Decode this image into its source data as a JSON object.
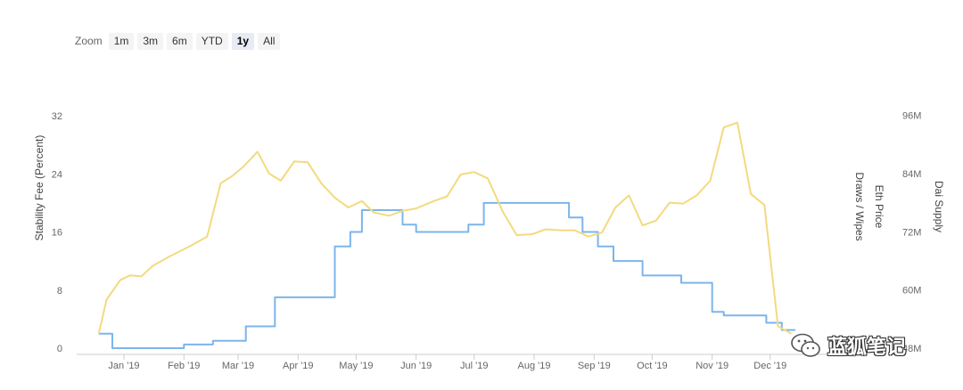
{
  "zoom": {
    "label": "Zoom",
    "buttons": [
      "1m",
      "3m",
      "6m",
      "YTD",
      "1y",
      "All"
    ],
    "active": "1y"
  },
  "watermark": {
    "text": "蓝狐笔记"
  },
  "chart_data": {
    "type": "line",
    "x_ticks": [
      "Jan '19",
      "Feb '19",
      "Mar '19",
      "Apr '19",
      "May '19",
      "Jun '19",
      "Jul '19",
      "Aug '19",
      "Sep '19",
      "Oct '19",
      "Nov '19",
      "Dec '19"
    ],
    "left_axis": {
      "label": "Stability Fee (Percent)",
      "ticks": [
        "0",
        "8",
        "16",
        "24",
        "32"
      ],
      "range": [
        0,
        32
      ]
    },
    "right_axes": [
      {
        "label": "Dai Supply",
        "ticks": [
          "48M",
          "60M",
          "72M",
          "84M",
          "96M"
        ],
        "range": [
          48,
          96
        ]
      },
      {
        "label": "Eth Price",
        "ticks": []
      },
      {
        "label": "Draws / Wipes",
        "ticks": []
      }
    ],
    "series": [
      {
        "axis": "left",
        "color": "#7cb5ec",
        "step": true,
        "points": [
          [
            "2018-12-19",
            2
          ],
          [
            "2018-12-26",
            0
          ],
          [
            "2019-02-01",
            0.5
          ],
          [
            "2019-02-16",
            1
          ],
          [
            "2019-03-05",
            3
          ],
          [
            "2019-03-20",
            7
          ],
          [
            "2019-04-20",
            14
          ],
          [
            "2019-04-28",
            16
          ],
          [
            "2019-05-04",
            19
          ],
          [
            "2019-05-25",
            17
          ],
          [
            "2019-06-01",
            16
          ],
          [
            "2019-06-28",
            17
          ],
          [
            "2019-07-06",
            20
          ],
          [
            "2019-08-19",
            18
          ],
          [
            "2019-08-26",
            16
          ],
          [
            "2019-09-03",
            14
          ],
          [
            "2019-09-11",
            12
          ],
          [
            "2019-09-26",
            10
          ],
          [
            "2019-10-16",
            9
          ],
          [
            "2019-11-01",
            5
          ],
          [
            "2019-11-07",
            4.5
          ],
          [
            "2019-11-29",
            3.5
          ],
          [
            "2019-12-07",
            2.5
          ],
          [
            "2019-12-14",
            2.5
          ]
        ]
      },
      {
        "axis": "right",
        "color": "#f3da7f",
        "step": false,
        "points": [
          [
            "2018-12-19",
            51
          ],
          [
            "2018-12-23",
            58
          ],
          [
            "2018-12-30",
            62
          ],
          [
            "2019-01-04",
            63
          ],
          [
            "2019-01-10",
            62.8
          ],
          [
            "2019-01-16",
            65
          ],
          [
            "2019-01-25",
            67
          ],
          [
            "2019-02-04",
            69
          ],
          [
            "2019-02-13",
            71
          ],
          [
            "2019-02-20",
            82
          ],
          [
            "2019-02-26",
            83.5
          ],
          [
            "2019-03-04",
            85.5
          ],
          [
            "2019-03-11",
            88.5
          ],
          [
            "2019-03-17",
            84
          ],
          [
            "2019-03-23",
            82.5
          ],
          [
            "2019-03-30",
            86.5
          ],
          [
            "2019-04-06",
            86.3
          ],
          [
            "2019-04-13",
            82
          ],
          [
            "2019-04-20",
            79
          ],
          [
            "2019-04-27",
            77
          ],
          [
            "2019-05-04",
            78.3
          ],
          [
            "2019-05-10",
            76
          ],
          [
            "2019-05-18",
            75.3
          ],
          [
            "2019-05-25",
            76.3
          ],
          [
            "2019-06-01",
            76.8
          ],
          [
            "2019-06-10",
            78.3
          ],
          [
            "2019-06-17",
            79.3
          ],
          [
            "2019-06-24",
            83.8
          ],
          [
            "2019-07-01",
            84.3
          ],
          [
            "2019-07-08",
            83
          ],
          [
            "2019-07-16",
            76
          ],
          [
            "2019-07-23",
            71.3
          ],
          [
            "2019-07-31",
            71.5
          ],
          [
            "2019-08-07",
            72.5
          ],
          [
            "2019-08-15",
            72.3
          ],
          [
            "2019-08-22",
            72.3
          ],
          [
            "2019-08-29",
            71
          ],
          [
            "2019-09-05",
            71.8
          ],
          [
            "2019-09-12",
            77
          ],
          [
            "2019-09-19",
            79.5
          ],
          [
            "2019-09-26",
            73.3
          ],
          [
            "2019-10-03",
            74.3
          ],
          [
            "2019-10-10",
            78
          ],
          [
            "2019-10-17",
            77.8
          ],
          [
            "2019-10-24",
            79.5
          ],
          [
            "2019-10-31",
            82.5
          ],
          [
            "2019-11-07",
            93.5
          ],
          [
            "2019-11-14",
            94.5
          ],
          [
            "2019-11-21",
            79.8
          ],
          [
            "2019-11-28",
            77.5
          ],
          [
            "2019-12-05",
            52.5
          ],
          [
            "2019-12-12",
            51
          ]
        ]
      }
    ]
  }
}
